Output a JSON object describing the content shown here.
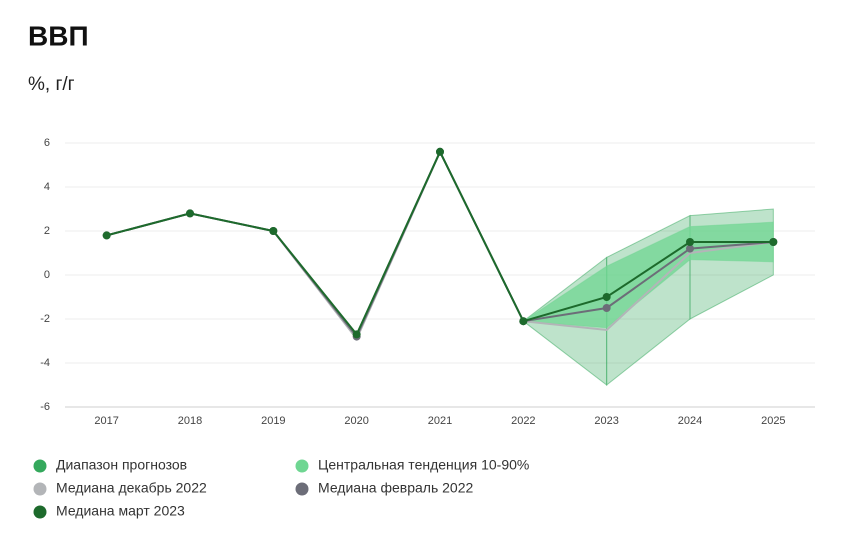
{
  "chart_data": {
    "type": "line",
    "title": "ВВП",
    "subtitle": "%, г/г",
    "categories": [
      "2017",
      "2018",
      "2019",
      "2020",
      "2021",
      "2022",
      "2023",
      "2024",
      "2025"
    ],
    "ylim": [
      -6,
      6
    ],
    "yticks": [
      -6,
      -4,
      -2,
      0,
      2,
      4,
      6
    ],
    "grid": true,
    "bands": [
      {
        "name": "Диапазон прогнозов",
        "color": "#34a85c",
        "lower": [
          null,
          null,
          null,
          null,
          null,
          -2.1,
          -5.0,
          -2.0,
          0.0
        ],
        "upper": [
          null,
          null,
          null,
          null,
          null,
          -2.1,
          0.8,
          2.7,
          3.0
        ]
      },
      {
        "name": "Центральная тенденция 10-90%",
        "color": "#6fd692",
        "lower": [
          null,
          null,
          null,
          null,
          null,
          -2.1,
          -2.4,
          0.7,
          0.6
        ],
        "upper": [
          null,
          null,
          null,
          null,
          null,
          -2.1,
          0.4,
          2.2,
          2.4
        ]
      }
    ],
    "series": [
      {
        "name": "Медиана декабрь 2022",
        "color": "#b3b5b8",
        "markers": false,
        "values": [
          1.8,
          2.8,
          2.0,
          -2.9,
          5.6,
          -2.1,
          -2.5,
          1.0,
          1.5
        ]
      },
      {
        "name": "Медиана февраль 2022",
        "color": "#6c6d78",
        "markers": true,
        "values": [
          1.8,
          2.8,
          2.0,
          -2.8,
          5.6,
          -2.1,
          -1.5,
          1.2,
          1.5
        ]
      },
      {
        "name": "Медиана март 2023",
        "color": "#1d6a2c",
        "markers": true,
        "values": [
          1.8,
          2.8,
          2.0,
          -2.7,
          5.6,
          -2.1,
          -1.0,
          1.5,
          1.5
        ]
      }
    ]
  }
}
